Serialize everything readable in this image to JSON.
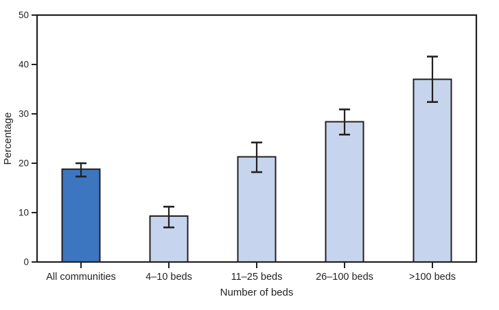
{
  "chart_data": {
    "type": "bar",
    "title": "",
    "categories": [
      "All communities",
      "4–10 beds",
      "11–25 beds",
      "26–100 beds",
      ">100 beds"
    ],
    "values": [
      18.8,
      9.3,
      21.3,
      28.4,
      37.0
    ],
    "error_low": [
      17.3,
      7.0,
      18.2,
      25.8,
      32.4
    ],
    "error_high": [
      20.0,
      11.2,
      24.2,
      30.9,
      41.6
    ],
    "xlabel": "Number of beds",
    "ylabel": "Percentage",
    "ylim": [
      0,
      50
    ],
    "yticks": [
      0,
      10,
      20,
      30,
      40,
      50
    ],
    "grid": false,
    "legend": false,
    "frame": "box",
    "bar_colors": [
      "#3c76c0",
      "#c7d4ed",
      "#c7d4ed",
      "#c7d4ed",
      "#c7d4ed"
    ],
    "bar_edge_color": "#231f20",
    "error_bar_color": "#231f20",
    "axis_color": "#231f20",
    "background_color": "#ffffff"
  }
}
